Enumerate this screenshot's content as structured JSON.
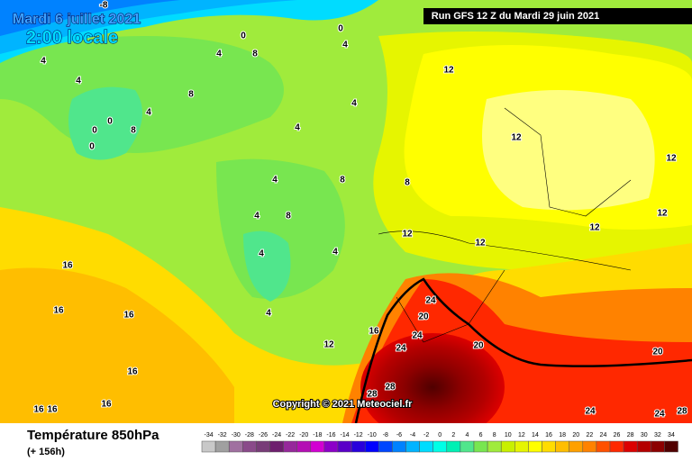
{
  "header": {
    "date": "Mardi 6 juillet 2021",
    "time": "2:00 locale",
    "run": "Run GFS 12 Z du Mardi 29 juin 2021"
  },
  "copyright": "Copyright © 2021 Meteociel.fr",
  "footer": {
    "title": "Température 850hPa",
    "lead": "(+ 156h)"
  },
  "legend": {
    "ticks": [
      -34,
      -32,
      -30,
      -28,
      -26,
      -24,
      -22,
      -20,
      -18,
      -16,
      -14,
      -12,
      -10,
      -8,
      -6,
      -4,
      -2,
      0,
      2,
      4,
      6,
      8,
      10,
      12,
      14,
      16,
      18,
      20,
      22,
      24,
      26,
      28,
      30,
      32,
      34
    ],
    "colors": [
      "#c8c8c8",
      "#a0a0a0",
      "#a070a0",
      "#8a4a8a",
      "#783c78",
      "#6e1e6e",
      "#96289b",
      "#b40fb4",
      "#d200d2",
      "#8c00c8",
      "#5a00c8",
      "#2800dc",
      "#0000ff",
      "#0046ff",
      "#0082ff",
      "#00b4ff",
      "#00dcff",
      "#00ffe6",
      "#00f0b4",
      "#50e68c",
      "#78e650",
      "#a0eb3c",
      "#c8f000",
      "#e6f500",
      "#ffff00",
      "#ffdc00",
      "#ffbe00",
      "#ffa000",
      "#ff8200",
      "#ff5000",
      "#ff2800",
      "#dc0000",
      "#b40000",
      "#8c0000",
      "#500000"
    ]
  },
  "contour_labels": [
    -8,
    0,
    0,
    4,
    4,
    8,
    4,
    4,
    8,
    0,
    0,
    0,
    4,
    8,
    4,
    4,
    12,
    12,
    12,
    4,
    8,
    8,
    4,
    8,
    4,
    4,
    12,
    12,
    12,
    12,
    16,
    16,
    16,
    4,
    24,
    20,
    24,
    16,
    12,
    20,
    20,
    24,
    16,
    28,
    28,
    24,
    28,
    24,
    16,
    16,
    16
  ]
}
